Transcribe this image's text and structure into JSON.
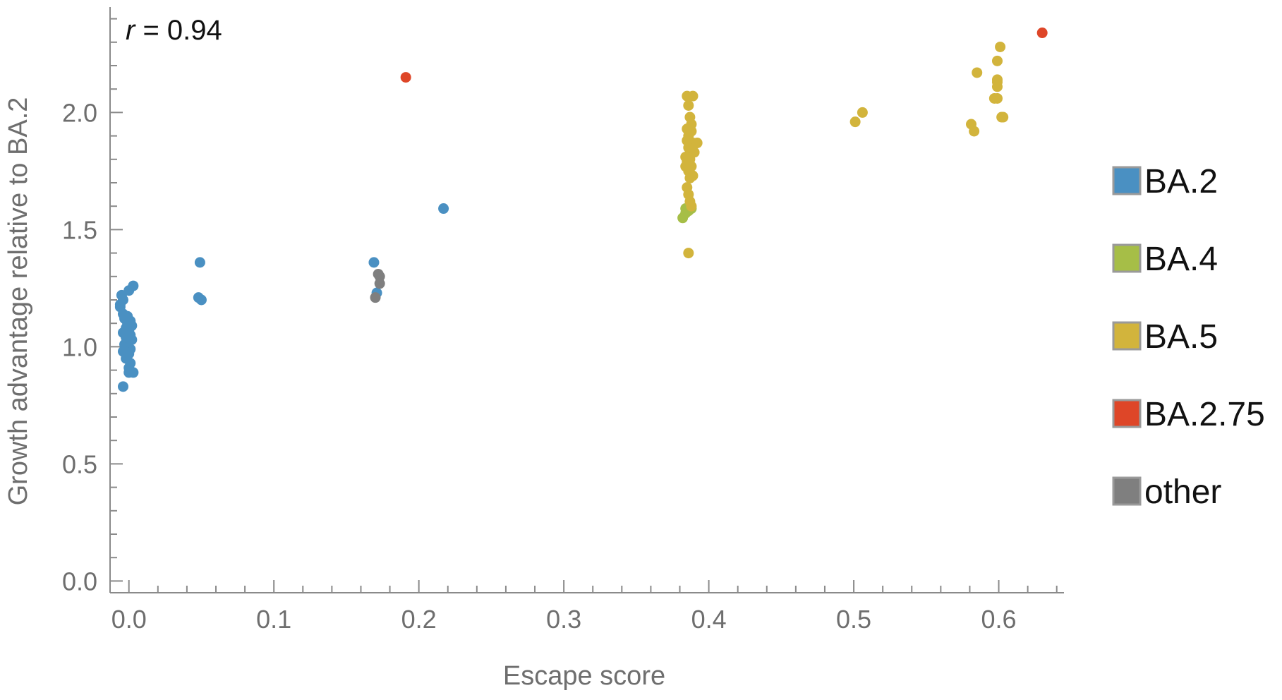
{
  "chart_data": {
    "type": "scatter",
    "xlabel": "Escape score",
    "ylabel": "Growth advantage relative to BA.2",
    "xlim": [
      -0.013,
      0.645
    ],
    "ylim": [
      -0.05,
      2.45
    ],
    "x_ticks": [
      0.0,
      0.1,
      0.2,
      0.3,
      0.4,
      0.5,
      0.6
    ],
    "x_tick_labels": [
      "0.0",
      "0.1",
      "0.2",
      "0.3",
      "0.4",
      "0.5",
      "0.6"
    ],
    "y_ticks": [
      0.0,
      0.5,
      1.0,
      1.5,
      2.0
    ],
    "y_tick_labels": [
      "0.0",
      "0.5",
      "1.0",
      "1.5",
      "2.0"
    ],
    "annotation": {
      "symbol": "r",
      "text": " = 0.94"
    },
    "legend_position": "right",
    "grid": false,
    "series": [
      {
        "name": "BA.2",
        "color": "#4a90c2",
        "points": [
          [
            -0.004,
            0.83
          ],
          [
            0.0,
            0.89
          ],
          [
            0.003,
            0.89
          ],
          [
            0.0,
            0.91
          ],
          [
            0.001,
            0.93
          ],
          [
            -0.002,
            0.95
          ],
          [
            0.0,
            0.97
          ],
          [
            -0.004,
            0.98
          ],
          [
            0.001,
            0.99
          ],
          [
            -0.001,
            1.0
          ],
          [
            -0.003,
            1.01
          ],
          [
            0.0,
            1.02
          ],
          [
            0.002,
            1.03
          ],
          [
            -0.002,
            1.04
          ],
          [
            0.001,
            1.05
          ],
          [
            -0.004,
            1.06
          ],
          [
            0.0,
            1.07
          ],
          [
            -0.002,
            1.08
          ],
          [
            0.002,
            1.09
          ],
          [
            -0.001,
            1.1
          ],
          [
            0.001,
            1.11
          ],
          [
            -0.003,
            1.12
          ],
          [
            -0.001,
            1.13
          ],
          [
            -0.004,
            1.14
          ],
          [
            -0.006,
            1.17
          ],
          [
            -0.006,
            1.18
          ],
          [
            -0.004,
            1.2
          ],
          [
            -0.005,
            1.22
          ],
          [
            0.0,
            1.24
          ],
          [
            0.003,
            1.26
          ],
          [
            0.048,
            1.21
          ],
          [
            0.05,
            1.2
          ],
          [
            0.049,
            1.36
          ],
          [
            0.169,
            1.36
          ],
          [
            0.171,
            1.23
          ],
          [
            0.217,
            1.59
          ],
          [
            0.387,
            1.84
          ]
        ]
      },
      {
        "name": "BA.4",
        "color": "#a6be47",
        "points": [
          [
            0.382,
            1.55
          ],
          [
            0.384,
            1.57
          ],
          [
            0.384,
            1.59
          ],
          [
            0.386,
            1.58
          ],
          [
            0.388,
            1.59
          ]
        ]
      },
      {
        "name": "BA.5",
        "color": "#d2b43c",
        "points": [
          [
            0.385,
            2.07
          ],
          [
            0.389,
            2.07
          ],
          [
            0.386,
            2.03
          ],
          [
            0.387,
            1.98
          ],
          [
            0.388,
            1.95
          ],
          [
            0.385,
            1.93
          ],
          [
            0.388,
            1.92
          ],
          [
            0.386,
            1.9
          ],
          [
            0.385,
            1.88
          ],
          [
            0.389,
            1.87
          ],
          [
            0.392,
            1.87
          ],
          [
            0.386,
            1.85
          ],
          [
            0.39,
            1.83
          ],
          [
            0.384,
            1.81
          ],
          [
            0.387,
            1.8
          ],
          [
            0.385,
            1.79
          ],
          [
            0.388,
            1.77
          ],
          [
            0.384,
            1.77
          ],
          [
            0.386,
            1.75
          ],
          [
            0.389,
            1.73
          ],
          [
            0.387,
            1.72
          ],
          [
            0.385,
            1.68
          ],
          [
            0.386,
            1.65
          ],
          [
            0.387,
            1.62
          ],
          [
            0.388,
            1.6
          ],
          [
            0.386,
            1.4
          ],
          [
            0.501,
            1.96
          ],
          [
            0.506,
            2.0
          ],
          [
            0.581,
            1.95
          ],
          [
            0.583,
            1.92
          ],
          [
            0.585,
            2.17
          ],
          [
            0.597,
            2.06
          ],
          [
            0.599,
            2.06
          ],
          [
            0.599,
            2.11
          ],
          [
            0.599,
            2.14
          ],
          [
            0.599,
            2.13
          ],
          [
            0.599,
            2.22
          ],
          [
            0.601,
            2.28
          ],
          [
            0.602,
            1.98
          ],
          [
            0.603,
            1.98
          ]
        ]
      },
      {
        "name": "BA.2.75",
        "color": "#de4628",
        "points": [
          [
            0.191,
            2.15
          ],
          [
            0.63,
            2.34
          ]
        ]
      },
      {
        "name": "other",
        "color": "#7f7f7f",
        "points": [
          [
            0.17,
            1.21
          ],
          [
            0.172,
            1.31
          ],
          [
            0.173,
            1.3
          ],
          [
            0.173,
            1.27
          ]
        ]
      }
    ]
  }
}
